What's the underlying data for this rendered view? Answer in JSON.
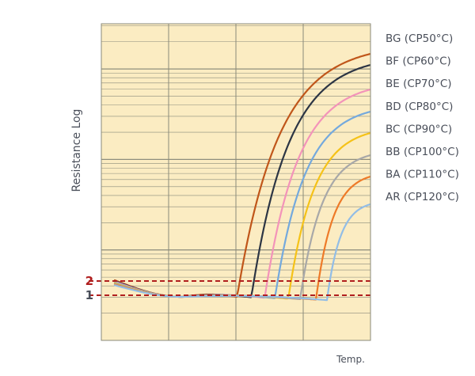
{
  "chart_data": {
    "type": "line",
    "xlabel": "Temp.",
    "ylabel": "Resistance Log",
    "grid": true,
    "legend_position": "right",
    "y_scale": "log",
    "x_ticks_labeled": false,
    "background_color": "#fbecc2",
    "grid_color": "#8a8a7a",
    "reference_lines": [
      {
        "label": "2",
        "level": 2,
        "color": "#b01e1e"
      },
      {
        "label": "1",
        "level": 1,
        "color": "#b01e1e"
      }
    ],
    "series": [
      {
        "name": "BG (CP50°C)",
        "color": "#c0561a",
        "curie_point": 50
      },
      {
        "name": "BF (CP60°C)",
        "color": "#2c3544",
        "curie_point": 60
      },
      {
        "name": "BE (CP70°C)",
        "color": "#f393b9",
        "curie_point": 70
      },
      {
        "name": "BD (CP80°C)",
        "color": "#74a9dd",
        "curie_point": 80
      },
      {
        "name": "BC (CP90°C)",
        "color": "#f5c218",
        "curie_point": 90
      },
      {
        "name": "BB (CP100°C)",
        "color": "#a8a8a8",
        "curie_point": 100
      },
      {
        "name": "BA (CP110°C)",
        "color": "#ee7a28",
        "curie_point": 110
      },
      {
        "name": "AR (CP120°C)",
        "color": "#92bde6",
        "curie_point": 120
      }
    ]
  }
}
